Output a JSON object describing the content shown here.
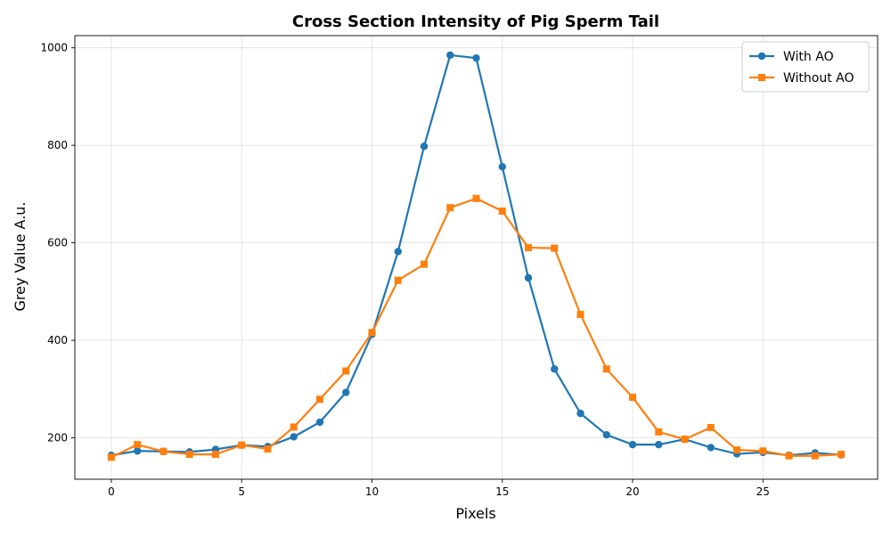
{
  "chart_data": {
    "type": "line",
    "title": "Cross Section Intensity of Pig Sperm Tail",
    "xlabel": "Pixels",
    "ylabel": "Grey Value A.u.",
    "xlim": [
      -1.4,
      29.4
    ],
    "ylim": [
      115,
      1025
    ],
    "xticks": [
      0,
      5,
      10,
      15,
      20,
      25
    ],
    "yticks": [
      200,
      400,
      600,
      800,
      1000
    ],
    "grid": true,
    "legend_position": "top-right",
    "x": [
      0,
      1,
      2,
      3,
      4,
      5,
      6,
      7,
      8,
      9,
      10,
      11,
      12,
      13,
      14,
      15,
      16,
      17,
      18,
      19,
      20,
      21,
      22,
      23,
      24,
      25,
      26,
      27,
      28
    ],
    "series": [
      {
        "name": "With AO",
        "color": "#1f77b4",
        "marker": "circle",
        "values": [
          164,
          173,
          172,
          171,
          176,
          185,
          182,
          202,
          232,
          293,
          412,
          582,
          798,
          985,
          979,
          756,
          528,
          341,
          250,
          206,
          186,
          186,
          197,
          180,
          167,
          170,
          164,
          169,
          165
        ]
      },
      {
        "name": "Without AO",
        "color": "#ff7f0e",
        "marker": "square",
        "values": [
          160,
          186,
          172,
          166,
          166,
          185,
          177,
          222,
          279,
          337,
          416,
          523,
          556,
          672,
          691,
          665,
          590,
          589,
          453,
          341,
          283,
          212,
          197,
          221,
          175,
          173,
          163,
          163,
          166
        ]
      }
    ]
  }
}
